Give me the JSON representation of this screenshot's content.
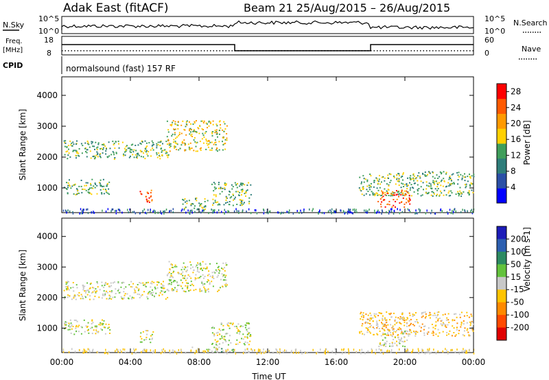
{
  "header": {
    "station": "Adak East (fitACF)",
    "beam_range": "Beam 21  25/Aug/2015 – 26/Aug/2015"
  },
  "panel_labels": {
    "nsky": "N.Sky",
    "nsearch": "N.Search",
    "freq_top": "Freq.",
    "freq_unit": "[MHz]",
    "nave": "Nave",
    "cpid": "CPID",
    "cpid_value": "normalsound (fast) 157 RF"
  },
  "noise_ticks": {
    "left_hi": "10^5",
    "left_lo": "10^0",
    "right_hi": "10^5",
    "right_lo": "10^0"
  },
  "freq_ticks": {
    "left_hi": "18",
    "left_lo": "8",
    "right_hi": "60",
    "right_lo": "0"
  },
  "chart_data": [
    {
      "type": "heatmap",
      "title": "Power",
      "xlabel": "",
      "ylabel": "Slant Range [km]",
      "x_ticks": [
        "00:00",
        "04:00",
        "08:00",
        "12:00",
        "16:00",
        "20:00",
        "00:00"
      ],
      "xlim": [
        0,
        24
      ],
      "y_ticks": [
        1000,
        2000,
        3000,
        4000
      ],
      "ylim": [
        200,
        4600
      ],
      "colorbar": {
        "label": "Power [dB]",
        "ticks": [
          4,
          8,
          12,
          16,
          20,
          24,
          28
        ],
        "range": [
          0,
          30
        ],
        "colors": [
          "#0000ff",
          "#2a4fa6",
          "#2e7d7a",
          "#3f9e5b",
          "#ffd000",
          "#ff9a00",
          "#ff5a00",
          "#ff0000"
        ]
      },
      "regions": [
        {
          "t": [
            0.1,
            6.2
          ],
          "r": [
            1950,
            2550
          ],
          "level": 12
        },
        {
          "t": [
            0.1,
            2.8
          ],
          "r": [
            800,
            1300
          ],
          "level": 10
        },
        {
          "t": [
            6.1,
            9.6
          ],
          "r": [
            2200,
            3200
          ],
          "level": 16
        },
        {
          "t": [
            4.5,
            5.3
          ],
          "r": [
            550,
            950
          ],
          "level": 22
        },
        {
          "t": [
            7.0,
            8.5
          ],
          "r": [
            300,
            700
          ],
          "level": 12
        },
        {
          "t": [
            8.7,
            11.0
          ],
          "r": [
            450,
            1200
          ],
          "level": 10
        },
        {
          "t": [
            17.3,
            24.0
          ],
          "r": [
            750,
            1550
          ],
          "level": 10
        },
        {
          "t": [
            18.4,
            20.3
          ],
          "r": [
            400,
            950
          ],
          "level": 24
        }
      ]
    },
    {
      "type": "heatmap",
      "title": "Velocity",
      "xlabel": "Time UT",
      "ylabel": "Slant Range [km]",
      "x_ticks": [
        "00:00",
        "04:00",
        "08:00",
        "12:00",
        "16:00",
        "20:00",
        "00:00"
      ],
      "xlim": [
        0,
        24
      ],
      "y_ticks": [
        1000,
        2000,
        3000,
        4000
      ],
      "ylim": [
        200,
        4600
      ],
      "colorbar": {
        "label": "Velocity [m s-1]",
        "ticks": [
          "200",
          "100",
          "50",
          "15",
          "-15",
          "-50",
          "-100",
          "-200"
        ],
        "colors": [
          "#1c1cb8",
          "#2c5fb0",
          "#2c8a62",
          "#63c23c",
          "#c8c8c8",
          "#ffc400",
          "#ff8a00",
          "#ff4a00",
          "#e00000"
        ]
      },
      "regions": [
        {
          "t": [
            0.1,
            6.2
          ],
          "r": [
            1950,
            2550
          ],
          "v": 0
        },
        {
          "t": [
            0.1,
            2.8
          ],
          "r": [
            800,
            1300
          ],
          "v": -10
        },
        {
          "t": [
            6.1,
            9.6
          ],
          "r": [
            2200,
            3200
          ],
          "v": 0
        },
        {
          "t": [
            4.5,
            5.3
          ],
          "r": [
            550,
            950
          ],
          "v": 0
        },
        {
          "t": [
            8.7,
            11.0
          ],
          "r": [
            450,
            1200
          ],
          "v": 0
        },
        {
          "t": [
            17.3,
            24.0
          ],
          "r": [
            750,
            1550
          ],
          "v": -20
        },
        {
          "t": [
            18.4,
            20.3
          ],
          "r": [
            400,
            950
          ],
          "v": 0
        },
        {
          "t": [
            7.5,
            10.0
          ],
          "r": [
            250,
            400
          ],
          "v": 60
        }
      ]
    }
  ]
}
